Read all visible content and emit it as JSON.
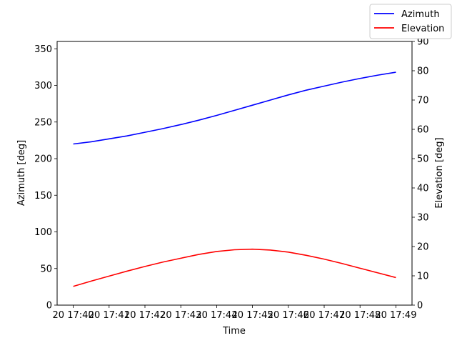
{
  "chart_data": {
    "type": "line",
    "xlabel": "Time",
    "ylabel_left": "Azimuth [deg]",
    "ylabel_right": "Elevation [deg]",
    "x_tick_labels": [
      "20 17:40",
      "20 17:41",
      "20 17:42",
      "20 17:43",
      "20 17:44",
      "20 17:45",
      "20 17:46",
      "20 17:47",
      "20 17:48",
      "20 17:49"
    ],
    "x_minutes": [
      0,
      0.5,
      1,
      1.5,
      2,
      2.5,
      3,
      3.5,
      4,
      4.5,
      5,
      5.5,
      6,
      6.5,
      7,
      7.5,
      8,
      8.5,
      9
    ],
    "xlim_minutes": [
      -0.45,
      9.45
    ],
    "ylim_left": [
      0,
      360
    ],
    "ylim_right": [
      0,
      90
    ],
    "yticks_left": [
      0,
      50,
      100,
      150,
      200,
      250,
      300,
      350
    ],
    "yticks_right": [
      0,
      10,
      20,
      30,
      40,
      50,
      60,
      70,
      80,
      90
    ],
    "grid": false,
    "legend_position": "top-right (outside plot)",
    "series": [
      {
        "name": "Azimuth",
        "axis": "left",
        "color": "#0000ff",
        "values": [
          220,
          223,
          227,
          231,
          236,
          241,
          246.5,
          252.5,
          259,
          266,
          273,
          280,
          287,
          293.5,
          299,
          304.5,
          309.5,
          314,
          318
        ]
      },
      {
        "name": "Elevation",
        "axis": "right",
        "color": "#ff0000",
        "values": [
          6.4,
          8.2,
          9.9,
          11.6,
          13.2,
          14.7,
          16.0,
          17.3,
          18.3,
          18.9,
          19.1,
          18.8,
          18.1,
          17.0,
          15.7,
          14.2,
          12.6,
          11.0,
          9.4
        ]
      }
    ]
  }
}
